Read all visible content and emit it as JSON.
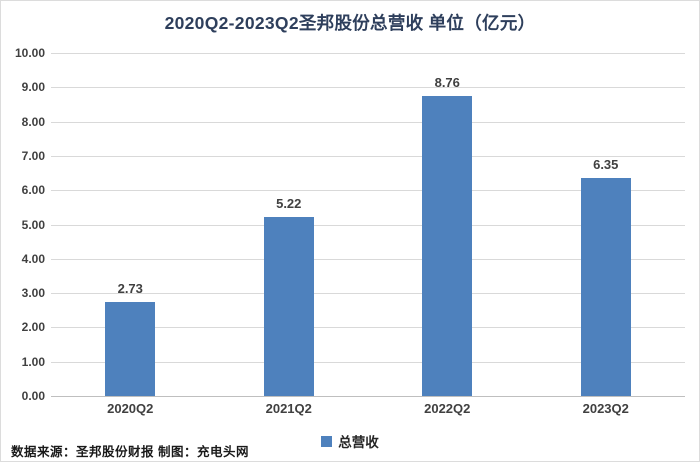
{
  "chart_data": {
    "type": "bar",
    "title": "2020Q2-2023Q2圣邦股份总营收 单位（亿元）",
    "categories": [
      "2020Q2",
      "2021Q2",
      "2022Q2",
      "2023Q2"
    ],
    "series": [
      {
        "name": "总营收",
        "values": [
          2.73,
          5.22,
          8.76,
          6.35
        ],
        "data_labels": [
          "2.73",
          "5.22",
          "8.76",
          "6.35"
        ]
      }
    ],
    "ylim": [
      0,
      10
    ],
    "ytick_step": 1.0,
    "ytick_labels": [
      "0.00",
      "1.00",
      "2.00",
      "3.00",
      "4.00",
      "5.00",
      "6.00",
      "7.00",
      "8.00",
      "9.00",
      "10.00"
    ],
    "grid": true,
    "legend": {
      "entries": [
        "总营收"
      ],
      "position": "bottom"
    },
    "unit": "亿元",
    "bar_color": "#4e81bd"
  },
  "legend": {
    "label": "总营收"
  },
  "footer": {
    "text": "数据来源：圣邦股份财报 制图：充电头网"
  },
  "colors": {
    "bar": "#4e81bd",
    "title_text": "#2e3f5c",
    "axis_text": "#404040",
    "gridline": "#d9d9d9",
    "axis_line": "#bfbfbf",
    "frame_border": "#dcdcdc"
  }
}
